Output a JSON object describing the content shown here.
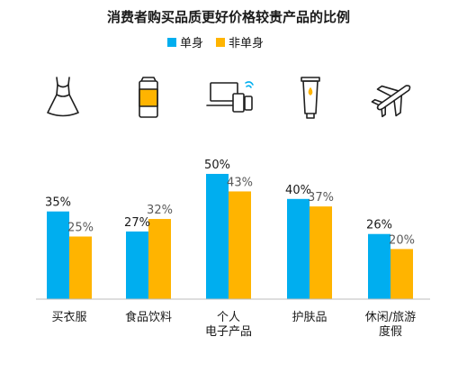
{
  "chart_data": {
    "type": "bar",
    "title": "消费者购买品质更好价格较贵产品的比例",
    "categories": [
      "买衣服",
      "食品饮料",
      "个人电子产品",
      "护肤品",
      "休闲/旅游度假"
    ],
    "category_lines": [
      [
        "买衣服"
      ],
      [
        "食品饮料"
      ],
      [
        "个人",
        "电子产品"
      ],
      [
        "护肤品"
      ],
      [
        "休闲/旅游",
        "度假"
      ]
    ],
    "series": [
      {
        "name": "单身",
        "values": [
          35,
          27,
          50,
          40,
          26
        ],
        "labels": [
          "35%",
          "27%",
          "50%",
          "40%",
          "26%"
        ],
        "color": "#00AEEF"
      },
      {
        "name": "非单身",
        "values": [
          25,
          32,
          43,
          37,
          20
        ],
        "labels": [
          "25%",
          "32%",
          "43%",
          "37%",
          "20%"
        ],
        "color": "#FFB400"
      }
    ],
    "ylim": [
      0,
      50
    ],
    "grid": false,
    "legend_position": "top",
    "icons": [
      "dress-icon",
      "drink-can-icon",
      "electronic-devices-icon",
      "skincare-tube-icon",
      "airplane-icon"
    ]
  }
}
